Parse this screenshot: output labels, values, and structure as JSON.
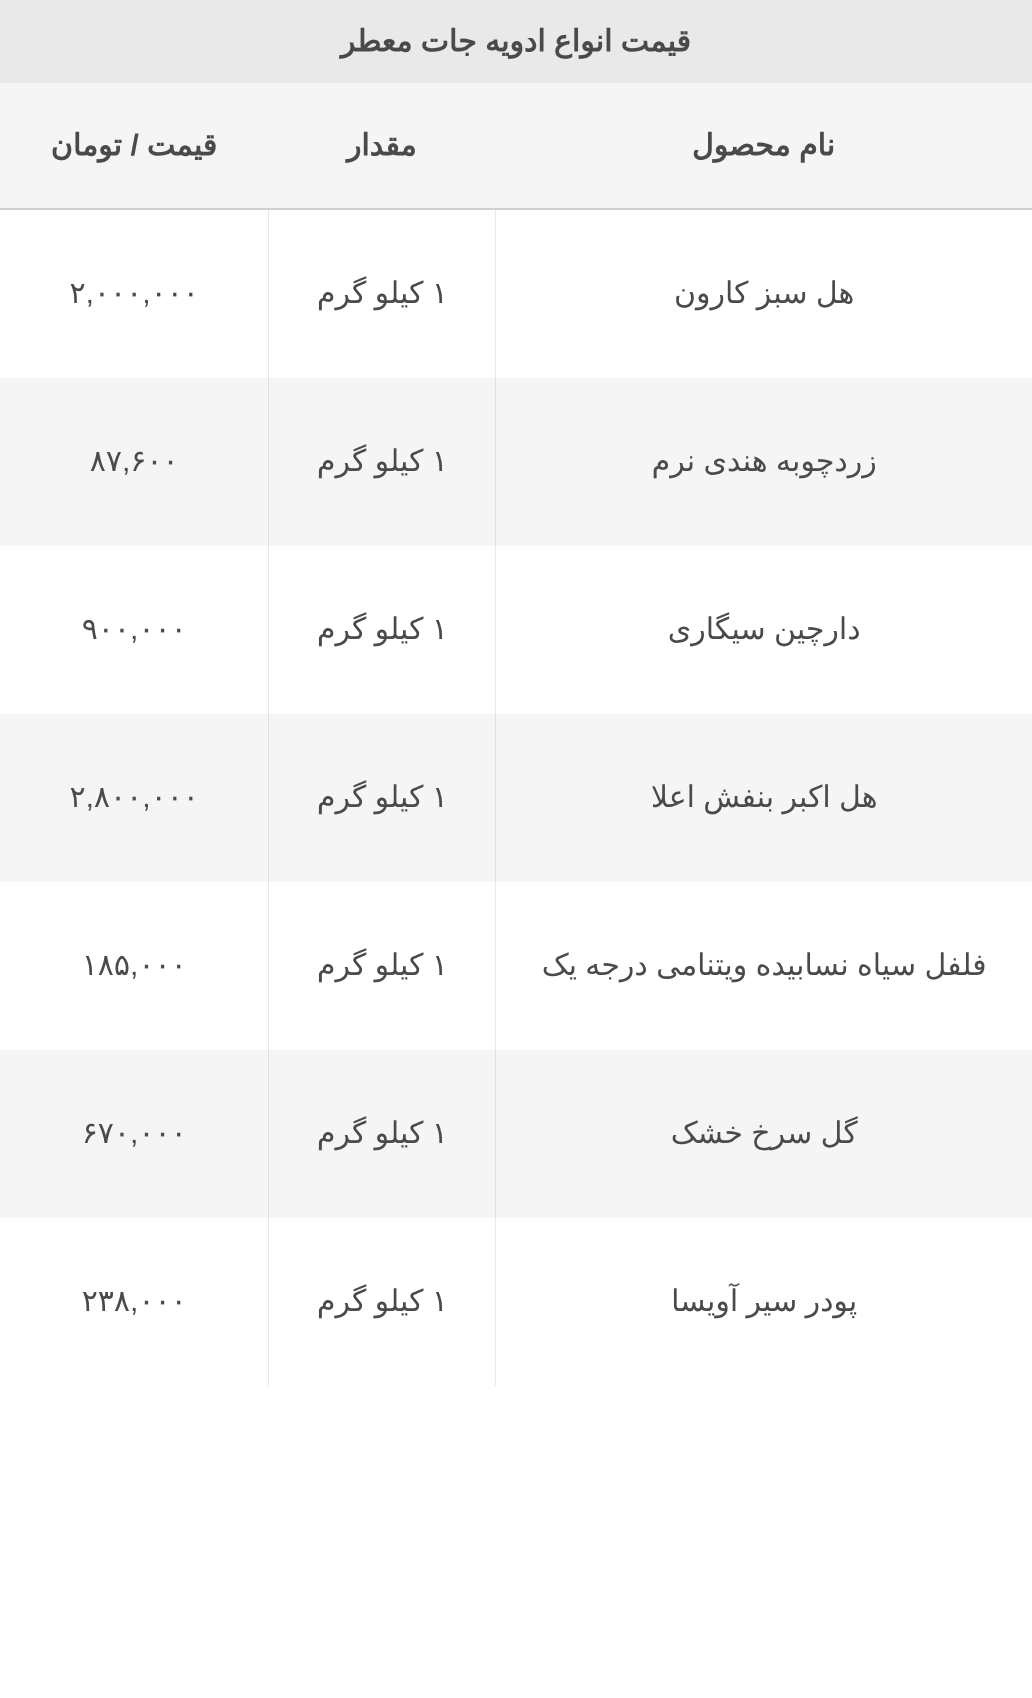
{
  "table": {
    "title": "قیمت انواع ادویه جات معطر",
    "columns": {
      "product": "نام محصول",
      "amount": "مقدار",
      "price": "قیمت / تومان"
    },
    "rows": [
      {
        "product": "هل سبز کارون",
        "amount": "۱ کیلو گرم",
        "price": "۲,۰۰۰,۰۰۰"
      },
      {
        "product": "زردچوبه هندی نرم",
        "amount": "۱ کیلو گرم",
        "price": "۸۷,۶۰۰"
      },
      {
        "product": "دارچین سیگاری",
        "amount": "۱ کیلو گرم",
        "price": "۹۰۰,۰۰۰"
      },
      {
        "product": "هل اکبر بنفش اعلا",
        "amount": "۱ کیلو گرم",
        "price": "۲,۸۰۰,۰۰۰"
      },
      {
        "product": "فلفل سیاه نسابیده ویتنامی درجه یک",
        "amount": "۱ کیلو گرم",
        "price": "۱۸۵,۰۰۰"
      },
      {
        "product": "گل سرخ خشک",
        "amount": "۱ کیلو گرم",
        "price": "۶۷۰,۰۰۰"
      },
      {
        "product": "پودر سیر آویسا",
        "amount": "۱ کیلو گرم",
        "price": "۲۳۸,۰۰۰"
      }
    ],
    "styling": {
      "title_bg": "#e9e9e9",
      "header_bg": "#f5f5f5",
      "row_odd_bg": "#ffffff",
      "row_even_bg": "#f5f5f5",
      "text_color": "#4a4a4a",
      "border_color": "#e8e8e8",
      "header_border": "#d0d0d0",
      "font_size_title": 30,
      "font_size_header": 30,
      "font_size_cell": 30,
      "col_widths_pct": {
        "product": 52,
        "amount": 22,
        "price": 26
      }
    }
  }
}
